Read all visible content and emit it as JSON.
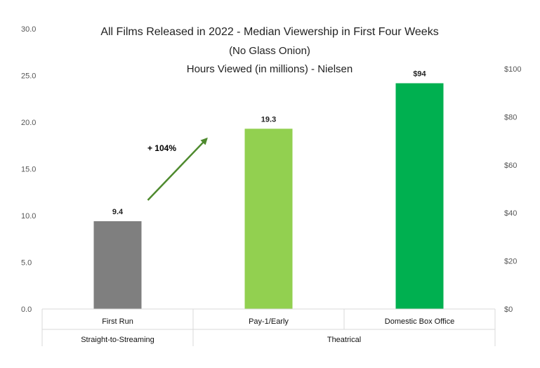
{
  "chart_data": {
    "type": "bar",
    "title": "All Films Released in 2022 - Median Viewership in First Four Weeks",
    "subtitle_1": "(No Glass Onion)",
    "subtitle_2": "Hours Viewed (in millions) - Nielsen",
    "categories": [
      "First Run",
      "Pay-1/Early",
      "Domestic Box Office"
    ],
    "groups": [
      {
        "label": "Straight-to-Streaming",
        "categories": [
          "First Run"
        ]
      },
      {
        "label": "Theatrical",
        "categories": [
          "Pay-1/Early",
          "Domestic Box Office"
        ]
      }
    ],
    "series": [
      {
        "axis": "left",
        "values": [
          9.4,
          19.3,
          null
        ],
        "labels": [
          "9.4",
          "19.3",
          ""
        ],
        "colors": [
          "#7f7f7f",
          "#92d050",
          null
        ]
      },
      {
        "axis": "right",
        "values": [
          null,
          null,
          94
        ],
        "labels": [
          "",
          "",
          "$94"
        ],
        "colors": [
          null,
          null,
          "#00b050"
        ]
      }
    ],
    "y_left": {
      "min": 0,
      "max": 30,
      "ticks": [
        "0.0",
        "5.0",
        "10.0",
        "15.0",
        "20.0",
        "25.0",
        "30.0"
      ]
    },
    "y_right": {
      "min": 0,
      "max": 110,
      "ticks": [
        "$0",
        "$20",
        "$40",
        "$60",
        "$80",
        "$100"
      ]
    },
    "annotation": {
      "text": "+ 104%",
      "arrow_color": "#4e8a2e"
    },
    "grid": false,
    "legend": "none"
  }
}
